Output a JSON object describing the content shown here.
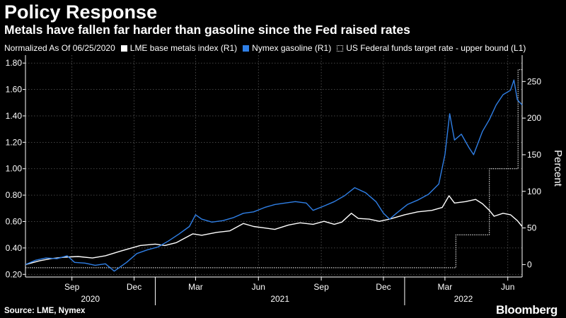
{
  "header": {
    "title": "Policy Response",
    "subtitle": "Metals have fallen far harder than gasoline since the Fed raised rates"
  },
  "legend": {
    "note": "Normalized As Of 06/25/2020",
    "items": [
      {
        "label": "LME base metals index (R1)",
        "color": "#ffffff",
        "style": "solid"
      },
      {
        "label": "Nymex gasoline (R1)",
        "color": "#2f7fe6",
        "style": "solid"
      },
      {
        "label": "US Federal funds target rate - upper bound (L1)",
        "color": "#ffffff",
        "style": "dotted"
      }
    ]
  },
  "footer": {
    "source": "Source: LME, Nymex",
    "brand": "Bloomberg"
  },
  "chart_data": {
    "type": "line",
    "x_range": [
      "2020-06-25",
      "2022-06-22"
    ],
    "x_ticks": [
      {
        "date": "2020-09-01",
        "label": "Sep"
      },
      {
        "date": "2020-12-01",
        "label": "Dec"
      },
      {
        "date": "2021-03-01",
        "label": "Mar"
      },
      {
        "date": "2021-06-01",
        "label": "Jun"
      },
      {
        "date": "2021-09-01",
        "label": "Sep"
      },
      {
        "date": "2021-12-01",
        "label": "Dec"
      },
      {
        "date": "2022-03-01",
        "label": "Mar"
      },
      {
        "date": "2022-06-01",
        "label": "Jun"
      }
    ],
    "year_labels": [
      {
        "label": "2020",
        "from": "2020-06-25",
        "to": "2021-01-01"
      },
      {
        "label": "2021",
        "from": "2021-01-01",
        "to": "2022-01-01"
      },
      {
        "label": "2022",
        "from": "2022-01-01",
        "to": "2022-06-22"
      }
    ],
    "left_axis": {
      "range": [
        0.18,
        1.86
      ],
      "ticks": [
        "0.20",
        "0.40",
        "0.60",
        "0.80",
        "1.00",
        "1.20",
        "1.40",
        "1.60",
        "1.80"
      ]
    },
    "right_axis": {
      "label": "Percent",
      "range": [
        -17,
        286
      ],
      "ticks": [
        "0",
        "50",
        "100",
        "150",
        "200",
        "250"
      ]
    },
    "series": [
      {
        "name": "US Federal funds target rate - upper bound (L1)",
        "axis": "left",
        "style": "dotted",
        "color": "#ffffff",
        "step": true,
        "points": [
          [
            "2020-06-25",
            0.25
          ],
          [
            "2022-03-17",
            0.5
          ],
          [
            "2022-05-05",
            1.0
          ],
          [
            "2022-06-16",
            1.75
          ],
          [
            "2022-06-22",
            1.75
          ]
        ]
      },
      {
        "name": "LME base metals index (R1)",
        "axis": "right",
        "style": "solid",
        "color": "#ffffff",
        "points": [
          [
            "2020-06-25",
            0
          ],
          [
            "2020-07-15",
            5
          ],
          [
            "2020-08-01",
            8
          ],
          [
            "2020-08-20",
            10
          ],
          [
            "2020-09-10",
            11
          ],
          [
            "2020-10-01",
            9
          ],
          [
            "2020-10-20",
            12
          ],
          [
            "2020-11-10",
            18
          ],
          [
            "2020-11-25",
            22
          ],
          [
            "2020-12-10",
            26
          ],
          [
            "2021-01-01",
            28
          ],
          [
            "2021-01-15",
            26
          ],
          [
            "2021-02-01",
            30
          ],
          [
            "2021-02-25",
            42
          ],
          [
            "2021-03-10",
            40
          ],
          [
            "2021-04-01",
            44
          ],
          [
            "2021-04-20",
            46
          ],
          [
            "2021-05-10",
            56
          ],
          [
            "2021-05-25",
            52
          ],
          [
            "2021-06-10",
            50
          ],
          [
            "2021-06-25",
            48
          ],
          [
            "2021-07-15",
            54
          ],
          [
            "2021-08-01",
            57
          ],
          [
            "2021-08-20",
            55
          ],
          [
            "2021-09-05",
            59
          ],
          [
            "2021-09-20",
            55
          ],
          [
            "2021-10-01",
            58
          ],
          [
            "2021-10-15",
            70
          ],
          [
            "2021-10-25",
            63
          ],
          [
            "2021-11-10",
            62
          ],
          [
            "2021-11-25",
            59
          ],
          [
            "2021-12-10",
            62
          ],
          [
            "2022-01-01",
            68
          ],
          [
            "2022-01-20",
            72
          ],
          [
            "2022-02-10",
            74
          ],
          [
            "2022-02-25",
            78
          ],
          [
            "2022-03-07",
            94
          ],
          [
            "2022-03-15",
            84
          ],
          [
            "2022-03-31",
            86
          ],
          [
            "2022-04-15",
            89
          ],
          [
            "2022-04-25",
            83
          ],
          [
            "2022-05-05",
            74
          ],
          [
            "2022-05-12",
            66
          ],
          [
            "2022-05-25",
            70
          ],
          [
            "2022-06-05",
            68
          ],
          [
            "2022-06-15",
            60
          ],
          [
            "2022-06-22",
            52
          ]
        ]
      },
      {
        "name": "Nymex gasoline (R1)",
        "axis": "right",
        "style": "solid",
        "color": "#2f7fe6",
        "points": [
          [
            "2020-06-25",
            0
          ],
          [
            "2020-07-10",
            6
          ],
          [
            "2020-07-25",
            9
          ],
          [
            "2020-08-10",
            8
          ],
          [
            "2020-08-25",
            12
          ],
          [
            "2020-09-05",
            3
          ],
          [
            "2020-09-20",
            2
          ],
          [
            "2020-10-05",
            -1
          ],
          [
            "2020-10-20",
            1
          ],
          [
            "2020-11-02",
            -9
          ],
          [
            "2020-11-20",
            3
          ],
          [
            "2020-12-05",
            15
          ],
          [
            "2020-12-20",
            20
          ],
          [
            "2021-01-05",
            24
          ],
          [
            "2021-01-20",
            32
          ],
          [
            "2021-02-05",
            42
          ],
          [
            "2021-02-20",
            52
          ],
          [
            "2021-03-01",
            68
          ],
          [
            "2021-03-10",
            62
          ],
          [
            "2021-03-25",
            58
          ],
          [
            "2021-04-10",
            60
          ],
          [
            "2021-04-25",
            64
          ],
          [
            "2021-05-10",
            70
          ],
          [
            "2021-05-25",
            72
          ],
          [
            "2021-06-10",
            78
          ],
          [
            "2021-06-25",
            82
          ],
          [
            "2021-07-10",
            84
          ],
          [
            "2021-07-25",
            86
          ],
          [
            "2021-08-10",
            84
          ],
          [
            "2021-08-20",
            74
          ],
          [
            "2021-09-05",
            80
          ],
          [
            "2021-09-20",
            86
          ],
          [
            "2021-10-05",
            94
          ],
          [
            "2021-10-20",
            105
          ],
          [
            "2021-11-05",
            98
          ],
          [
            "2021-11-20",
            86
          ],
          [
            "2021-12-01",
            70
          ],
          [
            "2021-12-10",
            62
          ],
          [
            "2021-12-20",
            70
          ],
          [
            "2022-01-05",
            82
          ],
          [
            "2022-01-20",
            88
          ],
          [
            "2022-02-05",
            96
          ],
          [
            "2022-02-20",
            110
          ],
          [
            "2022-03-01",
            150
          ],
          [
            "2022-03-08",
            206
          ],
          [
            "2022-03-15",
            170
          ],
          [
            "2022-03-25",
            178
          ],
          [
            "2022-04-05",
            160
          ],
          [
            "2022-04-12",
            150
          ],
          [
            "2022-04-25",
            182
          ],
          [
            "2022-05-05",
            198
          ],
          [
            "2022-05-15",
            218
          ],
          [
            "2022-05-25",
            232
          ],
          [
            "2022-06-05",
            238
          ],
          [
            "2022-06-10",
            252
          ],
          [
            "2022-06-15",
            225
          ],
          [
            "2022-06-22",
            218
          ]
        ]
      }
    ]
  }
}
